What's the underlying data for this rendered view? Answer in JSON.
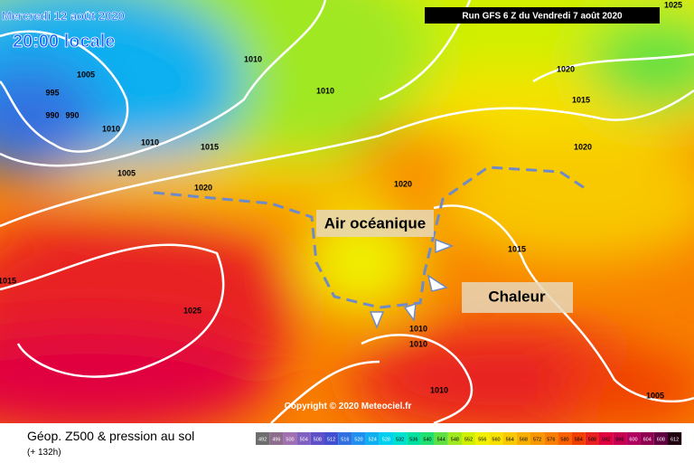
{
  "header": {
    "valid_date": "Mercredi 12 août 2020",
    "local_time": "20:00 locale",
    "run": "Run GFS 6 Z du Vendredi 7 août 2020"
  },
  "annotations": {
    "ocean_air": "Air océanique",
    "heat": "Chaleur"
  },
  "isobar_labels": [
    "1025",
    "1010",
    "1005",
    "995",
    "990",
    "990",
    "1010",
    "1010",
    "1015",
    "1005",
    "1020",
    "1010",
    "1020",
    "1015",
    "1020",
    "1020",
    "1015",
    "1015",
    "1025",
    "1010",
    "1010",
    "1010",
    "1005"
  ],
  "copyright": "Copyright © 2020 Meteociel.fr",
  "footer": {
    "title": "Géop. Z500 & pression au sol",
    "lead": "(+ 132h)"
  },
  "legend": {
    "values": [
      492,
      496,
      500,
      504,
      508,
      512,
      516,
      520,
      524,
      528,
      532,
      536,
      540,
      544,
      548,
      552,
      556,
      560,
      564,
      568,
      572,
      576,
      580,
      584,
      588,
      592,
      596,
      600,
      604,
      608,
      612
    ],
    "colors": [
      "#6e6e6e",
      "#8c6e8c",
      "#a070b0",
      "#8060c0",
      "#6050c8",
      "#4050d0",
      "#3070e0",
      "#2090f0",
      "#10b0f0",
      "#00d0f0",
      "#00e0d0",
      "#00e0a0",
      "#20e070",
      "#60e040",
      "#a0e820",
      "#d0f000",
      "#f0f000",
      "#f8e000",
      "#f8c800",
      "#f8b000",
      "#f89800",
      "#f88000",
      "#f86000",
      "#f04000",
      "#e82020",
      "#e00040",
      "#c80050",
      "#b00060",
      "#900050",
      "#600040",
      "#200010"
    ]
  }
}
